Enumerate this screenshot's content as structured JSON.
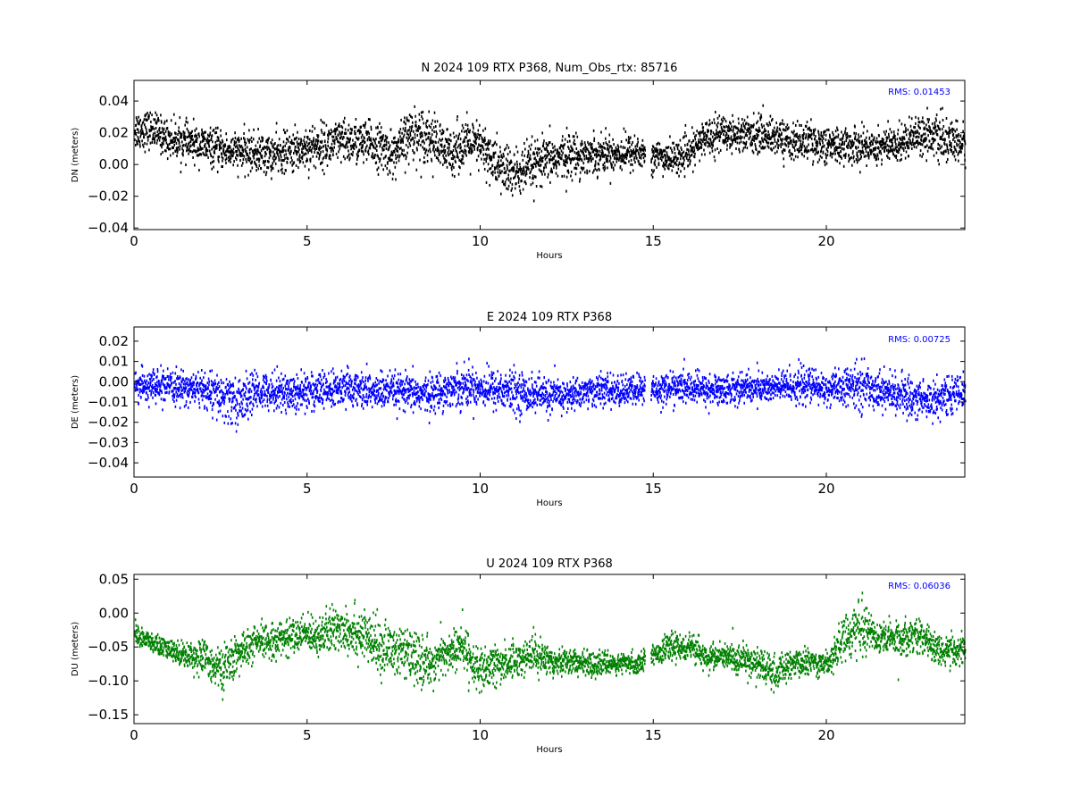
{
  "chart_data": [
    {
      "type": "scatter",
      "title": "N 2024 109 RTX  P368, Num_Obs_rtx: 85716",
      "xlabel": "Hours",
      "ylabel": "DN (meters)",
      "xlim": [
        0,
        24
      ],
      "ylim": [
        -0.041,
        0.053
      ],
      "xticks": [
        "0",
        "5",
        "10",
        "15",
        "20"
      ],
      "yticks": [
        "−0.04",
        "−0.02",
        "0.00",
        "0.02",
        "0.04"
      ],
      "annotation": "RMS:  0.01453",
      "color": "#000000",
      "grid": false,
      "rms": 0.01453,
      "series": [
        {
          "gap": [
            14.75,
            14.92
          ],
          "x": [
            0,
            0.5,
            1,
            1.5,
            2,
            2.5,
            3,
            3.5,
            4,
            4.5,
            5,
            5.5,
            6,
            6.5,
            7,
            7.5,
            8,
            8.5,
            9,
            9.5,
            10,
            10.5,
            11,
            11.5,
            12,
            12.5,
            13,
            13.5,
            14,
            14.5,
            15,
            15.5,
            16,
            16.5,
            17,
            17.5,
            18,
            18.5,
            19,
            19.5,
            20,
            20.5,
            21,
            21.5,
            22,
            22.5,
            23,
            23.5,
            24
          ],
          "mean": [
            0.022,
            0.022,
            0.016,
            0.014,
            0.012,
            0.009,
            0.008,
            0.007,
            0.006,
            0.008,
            0.011,
            0.012,
            0.014,
            0.014,
            0.012,
            0.006,
            0.02,
            0.018,
            0.007,
            0.013,
            0.011,
            -0.001,
            -0.006,
            -0.001,
            0.003,
            0.006,
            0.006,
            0.007,
            0.007,
            0.008,
            0.005,
            0.004,
            0.006,
            0.018,
            0.02,
            0.019,
            0.019,
            0.018,
            0.014,
            0.015,
            0.012,
            0.012,
            0.011,
            0.012,
            0.012,
            0.019,
            0.019,
            0.014,
            0.013
          ],
          "spread": [
            0.01,
            0.009,
            0.009,
            0.009,
            0.009,
            0.009,
            0.009,
            0.01,
            0.01,
            0.01,
            0.011,
            0.011,
            0.011,
            0.011,
            0.011,
            0.011,
            0.013,
            0.013,
            0.012,
            0.012,
            0.012,
            0.013,
            0.013,
            0.012,
            0.011,
            0.011,
            0.01,
            0.009,
            0.009,
            0.009,
            0.008,
            0.008,
            0.008,
            0.009,
            0.009,
            0.009,
            0.009,
            0.009,
            0.009,
            0.009,
            0.009,
            0.009,
            0.009,
            0.009,
            0.009,
            0.009,
            0.01,
            0.01,
            0.01
          ]
        }
      ]
    },
    {
      "type": "scatter",
      "title": "E 2024 109 RTX  P368",
      "xlabel": "Hours",
      "ylabel": "DE (meters)",
      "xlim": [
        0,
        24
      ],
      "ylim": [
        -0.047,
        0.027
      ],
      "xticks": [
        "0",
        "5",
        "10",
        "15",
        "20"
      ],
      "yticks": [
        "−0.04",
        "−0.03",
        "−0.02",
        "−0.01",
        "0.00",
        "0.01",
        "0.02"
      ],
      "annotation": "RMS:  0.00725",
      "color": "#0000ff",
      "grid": false,
      "rms": 0.00725,
      "series": [
        {
          "gap": [
            14.75,
            14.92
          ],
          "x": [
            0,
            0.5,
            1,
            1.5,
            2,
            2.5,
            3,
            3.5,
            4,
            4.5,
            5,
            5.5,
            6,
            6.5,
            7,
            7.5,
            8,
            8.5,
            9,
            9.5,
            10,
            10.5,
            11,
            11.5,
            12,
            12.5,
            13,
            13.5,
            14,
            14.5,
            15,
            15.5,
            16,
            16.5,
            17,
            17.5,
            18,
            18.5,
            19,
            19.5,
            20,
            20.5,
            21,
            21.5,
            22,
            22.5,
            23,
            23.5,
            24
          ],
          "mean": [
            -0.002,
            -0.002,
            -0.003,
            -0.003,
            -0.004,
            -0.008,
            -0.01,
            -0.005,
            -0.004,
            -0.006,
            -0.004,
            -0.005,
            -0.003,
            -0.004,
            -0.005,
            -0.005,
            -0.006,
            -0.006,
            -0.004,
            -0.002,
            -0.003,
            -0.004,
            -0.005,
            -0.006,
            -0.007,
            -0.007,
            -0.005,
            -0.004,
            -0.005,
            -0.004,
            -0.004,
            -0.003,
            -0.003,
            -0.004,
            -0.004,
            -0.003,
            -0.003,
            -0.003,
            -0.002,
            -0.002,
            -0.004,
            -0.003,
            -0.002,
            -0.004,
            -0.006,
            -0.008,
            -0.009,
            -0.007,
            -0.004
          ],
          "spread": [
            0.006,
            0.006,
            0.006,
            0.006,
            0.007,
            0.009,
            0.01,
            0.007,
            0.007,
            0.008,
            0.008,
            0.007,
            0.007,
            0.007,
            0.007,
            0.007,
            0.007,
            0.007,
            0.007,
            0.008,
            0.007,
            0.008,
            0.008,
            0.007,
            0.007,
            0.006,
            0.006,
            0.006,
            0.006,
            0.006,
            0.006,
            0.006,
            0.006,
            0.006,
            0.006,
            0.006,
            0.006,
            0.006,
            0.007,
            0.007,
            0.006,
            0.007,
            0.009,
            0.007,
            0.007,
            0.008,
            0.008,
            0.007,
            0.006
          ]
        }
      ]
    },
    {
      "type": "scatter",
      "title": "U 2024 109 RTX  P368",
      "xlabel": "Hours",
      "ylabel": "DU (meters)",
      "xlim": [
        0,
        24
      ],
      "ylim": [
        -0.163,
        0.057
      ],
      "xticks": [
        "0",
        "5",
        "10",
        "15",
        "20"
      ],
      "yticks": [
        "−0.15",
        "−0.10",
        "−0.05",
        "0.00",
        "0.05"
      ],
      "annotation": "RMS:  0.06036",
      "color": "#008000",
      "grid": false,
      "rms": 0.06036,
      "series": [
        {
          "gap": [
            14.75,
            14.92
          ],
          "x": [
            0,
            0.5,
            1,
            1.5,
            2,
            2.5,
            3,
            3.5,
            4,
            4.5,
            5,
            5.5,
            6,
            6.5,
            7,
            7.5,
            8,
            8.5,
            9,
            9.5,
            10,
            10.5,
            11,
            11.5,
            12,
            12.5,
            13,
            13.5,
            14,
            14.5,
            15,
            15.5,
            16,
            16.5,
            17,
            17.5,
            18,
            18.5,
            19,
            19.5,
            20,
            20.5,
            21,
            21.5,
            22,
            22.5,
            23,
            23.5,
            24
          ],
          "mean": [
            -0.03,
            -0.045,
            -0.055,
            -0.062,
            -0.065,
            -0.085,
            -0.06,
            -0.045,
            -0.04,
            -0.035,
            -0.03,
            -0.032,
            -0.02,
            -0.03,
            -0.05,
            -0.055,
            -0.065,
            -0.075,
            -0.06,
            -0.05,
            -0.09,
            -0.075,
            -0.07,
            -0.06,
            -0.07,
            -0.07,
            -0.075,
            -0.075,
            -0.075,
            -0.075,
            -0.06,
            -0.05,
            -0.05,
            -0.065,
            -0.065,
            -0.068,
            -0.075,
            -0.09,
            -0.075,
            -0.072,
            -0.075,
            -0.035,
            -0.02,
            -0.035,
            -0.04,
            -0.03,
            -0.045,
            -0.06,
            -0.05
          ],
          "spread": [
            0.012,
            0.012,
            0.012,
            0.015,
            0.02,
            0.025,
            0.022,
            0.02,
            0.02,
            0.02,
            0.02,
            0.025,
            0.03,
            0.03,
            0.03,
            0.03,
            0.03,
            0.025,
            0.025,
            0.025,
            0.025,
            0.025,
            0.02,
            0.02,
            0.018,
            0.015,
            0.015,
            0.012,
            0.012,
            0.012,
            0.012,
            0.015,
            0.015,
            0.015,
            0.015,
            0.018,
            0.02,
            0.02,
            0.015,
            0.015,
            0.015,
            0.025,
            0.028,
            0.02,
            0.02,
            0.02,
            0.018,
            0.018,
            0.018
          ]
        }
      ]
    }
  ]
}
